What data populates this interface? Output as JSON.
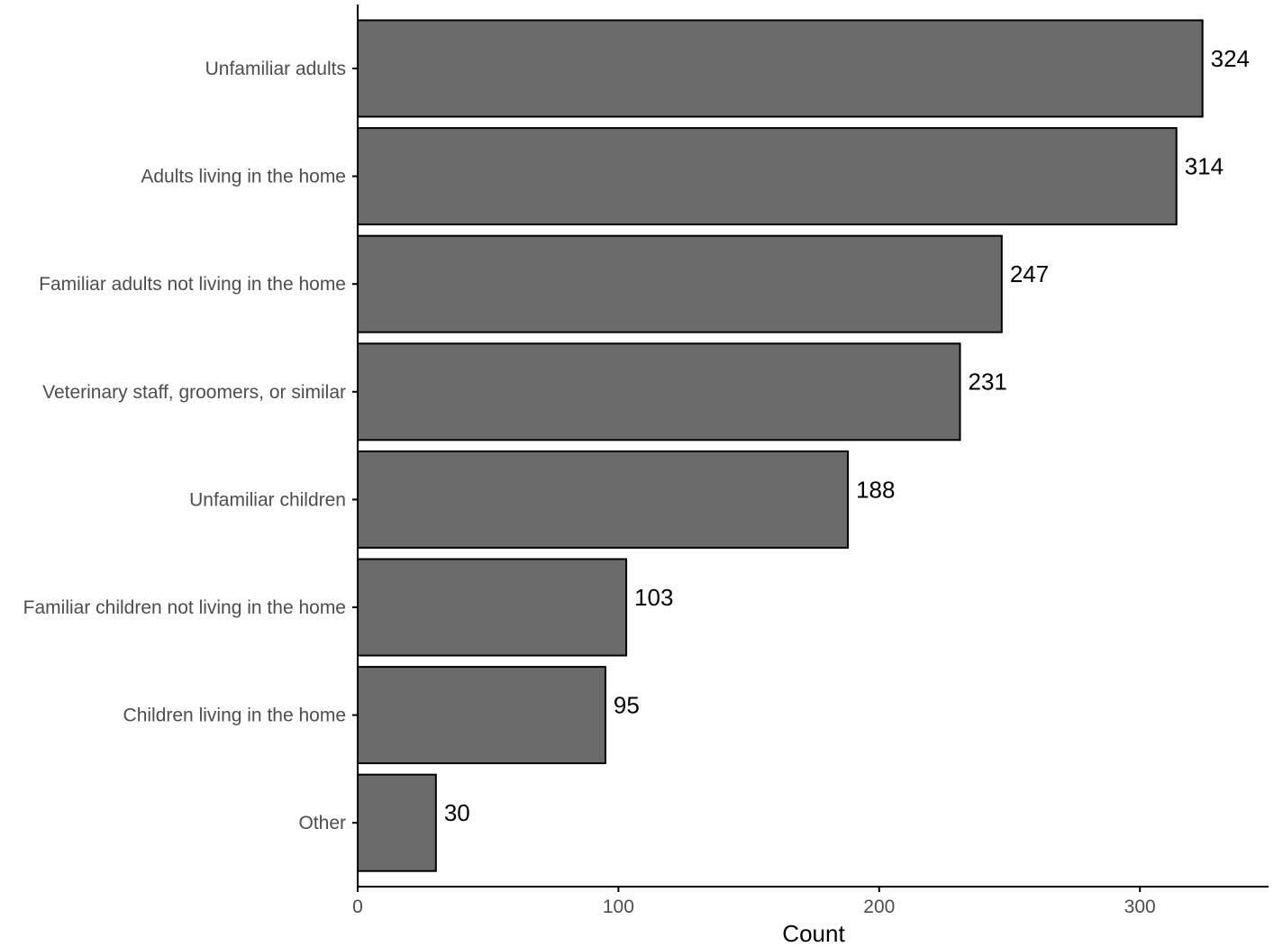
{
  "chart_data": {
    "type": "bar",
    "orientation": "horizontal",
    "categories": [
      "Unfamiliar adults",
      "Adults living in the home",
      "Familiar adults not living in the home",
      "Veterinary staff, groomers, or similar",
      "Unfamiliar children",
      "Familiar children not living in the home",
      "Children living in the home",
      "Other"
    ],
    "values": [
      324,
      314,
      247,
      231,
      188,
      103,
      95,
      30
    ],
    "data_labels": [
      "324",
      "314",
      "247",
      "231",
      "188",
      "103",
      "95",
      "30"
    ],
    "title": "",
    "xlabel": "Count",
    "ylabel": "",
    "xlim": [
      0,
      350
    ],
    "xticks": [
      0,
      100,
      200,
      300
    ],
    "xtick_labels": [
      "0",
      "100",
      "200",
      "300"
    ],
    "grid": false,
    "colors": {
      "bar_fill": "#6b6b6b",
      "bar_stroke": "#000000",
      "axis": "#000000"
    }
  }
}
